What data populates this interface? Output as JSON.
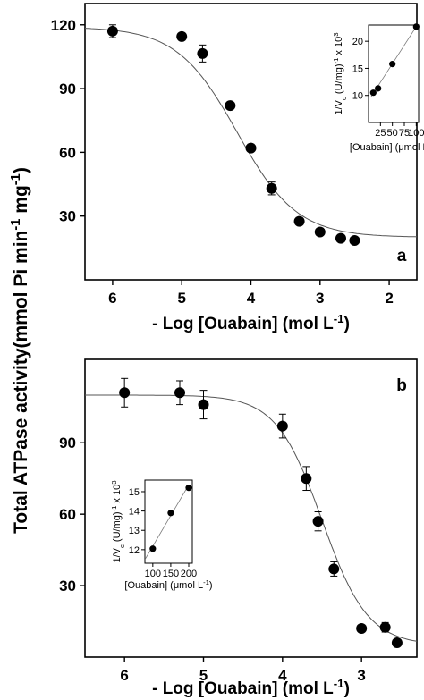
{
  "figure": {
    "y_axis_label_parts": [
      "Total ATPase activity",
      "(mmol Pi min",
      "-1",
      " mg",
      "-1",
      ")"
    ]
  },
  "chart_data": [
    {
      "type": "scatter",
      "panel": "a",
      "xlabel_parts": [
        "- Log [Ouabain] (mol L",
        "-1",
        ")"
      ],
      "xlim": [
        6.4,
        1.6
      ],
      "ylim": [
        0,
        130
      ],
      "x_ticks": [
        6,
        5,
        4,
        3,
        2
      ],
      "y_ticks": [
        30,
        60,
        90,
        120
      ],
      "points": [
        {
          "x": 6.0,
          "y": 117,
          "err": 3
        },
        {
          "x": 5.0,
          "y": 114.5,
          "err": 1.5
        },
        {
          "x": 4.7,
          "y": 106.5,
          "err": 4
        },
        {
          "x": 4.3,
          "y": 82,
          "err": 1.5
        },
        {
          "x": 4.0,
          "y": 62,
          "err": 1.5
        },
        {
          "x": 3.7,
          "y": 43,
          "err": 3
        },
        {
          "x": 3.3,
          "y": 27.5,
          "err": 1.5
        },
        {
          "x": 3.0,
          "y": 22.5,
          "err": 1.5
        },
        {
          "x": 2.7,
          "y": 19.5,
          "err": 1.5
        },
        {
          "x": 2.5,
          "y": 18.5,
          "err": 1.5
        }
      ],
      "fit": {
        "top": 119,
        "bottom": 20,
        "log_ic50": 4.2,
        "slope": 1.0
      },
      "inset": {
        "xlabel_parts": [
          "[Ouabain] (",
          "μ",
          "mol L",
          "-1",
          ")"
        ],
        "ylabel_parts": [
          "1/V",
          "c",
          " (U/mg)",
          "-1",
          " x 10",
          "3"
        ],
        "xlim": [
          0,
          105
        ],
        "ylim": [
          5,
          23
        ],
        "x_ticks": [
          25,
          50,
          75,
          100
        ],
        "y_ticks": [
          10,
          15,
          20
        ],
        "points": [
          {
            "x": 10,
            "y": 10.5
          },
          {
            "x": 20,
            "y": 11.3
          },
          {
            "x": 50,
            "y": 15.8
          },
          {
            "x": 100,
            "y": 22.7
          }
        ],
        "line": {
          "x": [
            5,
            100
          ],
          "y": [
            9.7,
            22.7
          ]
        }
      }
    },
    {
      "type": "scatter",
      "panel": "b",
      "xlabel_parts": [
        "- Log [Ouabain] (mol L",
        "-1",
        ")"
      ],
      "xlim": [
        6.5,
        2.3
      ],
      "ylim": [
        0,
        125
      ],
      "x_ticks": [
        6,
        5,
        4,
        3
      ],
      "y_ticks": [
        30,
        60,
        90
      ],
      "points": [
        {
          "x": 6.0,
          "y": 111,
          "err": 6
        },
        {
          "x": 5.3,
          "y": 111,
          "err": 5
        },
        {
          "x": 5.0,
          "y": 106,
          "err": 6
        },
        {
          "x": 4.0,
          "y": 97,
          "err": 5
        },
        {
          "x": 3.7,
          "y": 75,
          "err": 5
        },
        {
          "x": 3.55,
          "y": 57,
          "err": 4
        },
        {
          "x": 3.35,
          "y": 37,
          "err": 3
        },
        {
          "x": 3.0,
          "y": 12,
          "err": 1.5
        },
        {
          "x": 2.7,
          "y": 12.5,
          "err": 2
        },
        {
          "x": 2.55,
          "y": 6,
          "err": 1
        }
      ],
      "fit": {
        "top": 110,
        "bottom": 5,
        "log_ic50": 3.5,
        "slope": 1.5
      },
      "inset": {
        "xlabel_parts": [
          "[Ouabain] (",
          "μ",
          "mol L",
          "-1",
          ")"
        ],
        "ylabel_parts": [
          "1/V",
          "c",
          " (U/mg)",
          "-1",
          " x 10",
          "3"
        ],
        "xlim": [
          78,
          210
        ],
        "ylim": [
          11.3,
          15.6
        ],
        "x_ticks": [
          100,
          150,
          200
        ],
        "y_ticks": [
          12,
          13,
          14,
          15
        ],
        "points": [
          {
            "x": 100,
            "y": 12.05
          },
          {
            "x": 150,
            "y": 13.9
          },
          {
            "x": 200,
            "y": 15.2
          }
        ],
        "line": {
          "x": [
            80,
            200
          ],
          "y": [
            11.55,
            15.35
          ]
        }
      }
    }
  ]
}
